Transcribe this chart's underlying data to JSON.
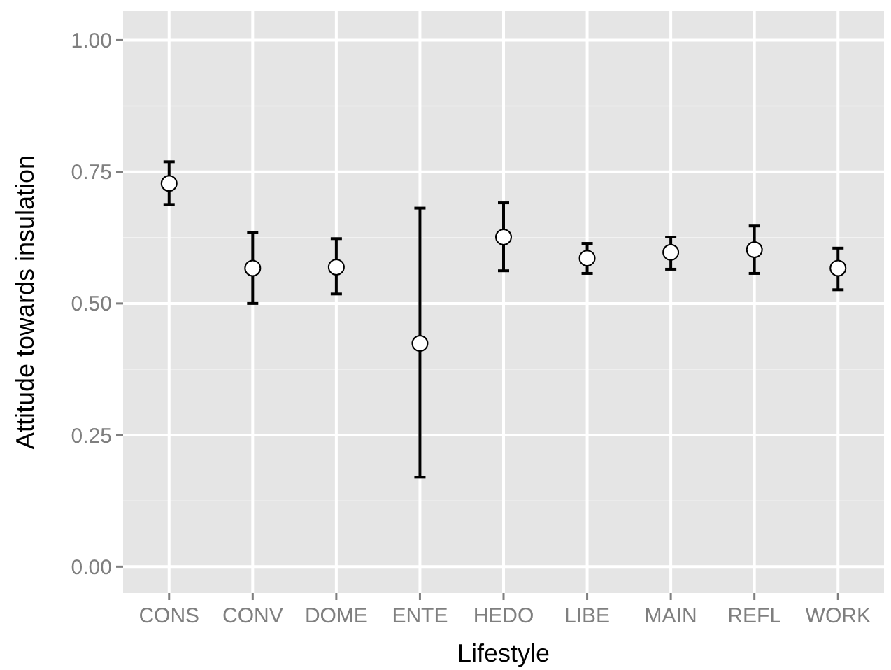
{
  "chart_data": {
    "type": "scatter",
    "xlabel": "Lifestyle",
    "ylabel": "Attitude towards insulation",
    "categories": [
      "CONS",
      "CONV",
      "DOME",
      "ENTE",
      "HEDO",
      "LIBE",
      "MAIN",
      "REFL",
      "WORK"
    ],
    "values": [
      0.728,
      0.567,
      0.569,
      0.424,
      0.626,
      0.586,
      0.597,
      0.602,
      0.567
    ],
    "errors": [
      [
        0.688,
        0.769
      ],
      [
        0.5,
        0.635
      ],
      [
        0.518,
        0.623
      ],
      [
        0.17,
        0.681
      ],
      [
        0.562,
        0.691
      ],
      [
        0.557,
        0.614
      ],
      [
        0.565,
        0.626
      ],
      [
        0.557,
        0.647
      ],
      [
        0.526,
        0.605
      ]
    ],
    "color": "#ffffff",
    "marker": "circle",
    "ylim": [
      -0.05,
      1.055
    ],
    "yticks": [
      {
        "value": 0,
        "label": "0.00"
      },
      {
        "value": 0.25,
        "label": "0.25"
      },
      {
        "value": 0.5,
        "label": "0.50"
      },
      {
        "value": 0.75,
        "label": "0.75"
      },
      {
        "value": 1,
        "label": "1.00"
      }
    ],
    "grid": true
  }
}
